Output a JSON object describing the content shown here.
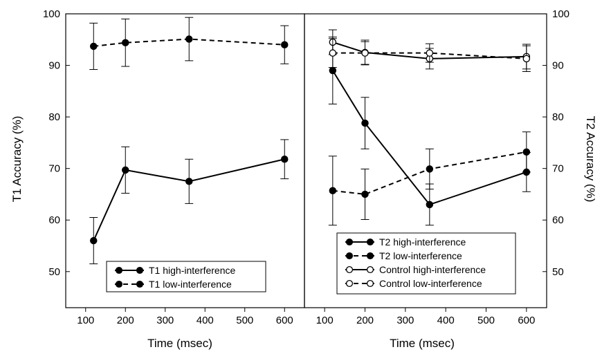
{
  "chart_data": [
    {
      "type": "line",
      "panel": "left",
      "xlabel": "Time (msec)",
      "ylabel": "T1 Accuracy (%)",
      "xlim": [
        50,
        650
      ],
      "ylim": [
        43,
        100
      ],
      "xticks": [
        100,
        200,
        300,
        400,
        500,
        600
      ],
      "yticks": [
        50,
        60,
        70,
        80,
        90,
        100
      ],
      "legend_position": "bottom-left",
      "series": [
        {
          "name": "T1 high-interference",
          "style": "solid",
          "marker": "filled",
          "x": [
            120,
            200,
            360,
            600
          ],
          "y": [
            56,
            69.7,
            67.5,
            71.8
          ],
          "err": [
            4.5,
            4.5,
            4.3,
            3.8
          ]
        },
        {
          "name": "T1 low-interference",
          "style": "dashed",
          "marker": "filled",
          "x": [
            120,
            200,
            360,
            600
          ],
          "y": [
            93.7,
            94.4,
            95.1,
            94
          ],
          "err": [
            4.5,
            4.6,
            4.2,
            3.7
          ]
        }
      ]
    },
    {
      "type": "line",
      "panel": "right",
      "xlabel": "Time (msec)",
      "ylabel": "T2 Accuracy (%)",
      "xlim": [
        50,
        650
      ],
      "ylim": [
        43,
        100
      ],
      "xticks": [
        100,
        200,
        300,
        400,
        500,
        600
      ],
      "yticks": [
        50,
        60,
        70,
        80,
        90,
        100
      ],
      "legend_position": "bottom-right",
      "series": [
        {
          "name": "T2 high-interference",
          "style": "solid",
          "marker": "filled",
          "x": [
            120,
            200,
            360,
            600
          ],
          "y": [
            89,
            78.8,
            63,
            69.3
          ],
          "err": [
            6.5,
            5,
            4,
            3.8
          ]
        },
        {
          "name": "T2 low-interference",
          "style": "dashed",
          "marker": "filled",
          "x": [
            120,
            200,
            360,
            600
          ],
          "y": [
            65.7,
            65,
            69.9,
            73.2
          ],
          "err": [
            6.7,
            4.9,
            3.9,
            3.9
          ]
        },
        {
          "name": "Control high-interference",
          "style": "solid",
          "marker": "open",
          "x": [
            120,
            200,
            360,
            600
          ],
          "y": [
            94.5,
            92.5,
            91.3,
            91.7
          ],
          "err": [
            2.4,
            2.4,
            2,
            2.4
          ]
        },
        {
          "name": "Control low-interference",
          "style": "dashed",
          "marker": "open",
          "x": [
            120,
            200,
            360,
            600
          ],
          "y": [
            92.4,
            92.4,
            92.4,
            91.3
          ],
          "err": [
            2.8,
            2.2,
            1.8,
            2.5
          ]
        }
      ]
    }
  ]
}
